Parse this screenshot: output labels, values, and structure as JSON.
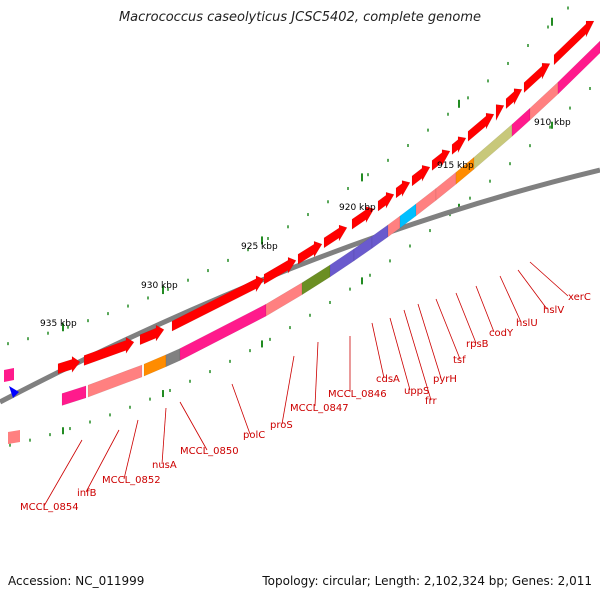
{
  "title": "Macrococcus caseolyticus JCSC5402, complete genome",
  "accession": "Accession: NC_011999",
  "summary": "Topology: circular; Length: 2,102,324 bp; Genes: 2,011",
  "tick_labels": [
    "910 kbp",
    "915 kbp",
    "920 kbp",
    "925 kbp",
    "930 kbp",
    "935 kbp"
  ],
  "genes": [
    "xerC",
    "hslV",
    "hslU",
    "codY",
    "rpsB",
    "tsf",
    "pyrH",
    "frr",
    "uppS",
    "cdsA",
    "MCCL_0846",
    "MCCL_0847",
    "proS",
    "polC",
    "MCCL_0850",
    "nusA",
    "MCCL_0852",
    "infB",
    "MCCL_0854"
  ],
  "colors": {
    "cds_forward": "#ff0000",
    "cds_reverse": "#ff8080",
    "backbone": "#808080",
    "ticks": "#228b22",
    "label": "#cc0000",
    "magenta": "#ff1a8c",
    "orange": "#ff8c00",
    "olive": "#6b8e23",
    "khaki": "#c8c87a",
    "purple": "#6a5acd",
    "cyan": "#00bfff",
    "gray": "#808080",
    "blue": "#0000ff"
  }
}
